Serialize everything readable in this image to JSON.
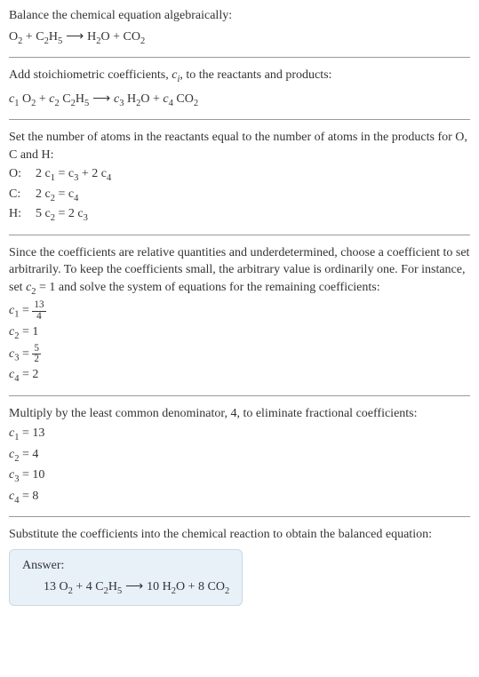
{
  "s1": {
    "l1": "Balance the chemical equation algebraically:"
  },
  "s2": {
    "l1": "Add stoichiometric coefficients, ",
    "l1b": ", to the reactants and products:"
  },
  "s3": {
    "l1": "Set the number of atoms in the reactants equal to the number of atoms in the products for O, C and H:",
    "rows": [
      {
        "el": "O:",
        "lhs": "2 c",
        "lhs_sub": "1",
        "mid": " = c",
        "mid_sub": "3",
        "pl": " + 2 c",
        "pl_sub": "4"
      },
      {
        "el": "C:",
        "lhs": "2 c",
        "lhs_sub": "2",
        "mid": " = c",
        "mid_sub": "4",
        "pl": "",
        "pl_sub": ""
      },
      {
        "el": "H:",
        "lhs": "5 c",
        "lhs_sub": "2",
        "mid": " = 2 c",
        "mid_sub": "3",
        "pl": "",
        "pl_sub": ""
      }
    ]
  },
  "s4": {
    "l1a": "Since the coefficients are relative quantities and underdetermined, choose a coefficient to set arbitrarily. To keep the coefficients small, the arbitrary value is ordinarily one. For instance, set ",
    "l1b": " = 1 and solve the system of equations for the remaining coefficients:",
    "c1": {
      "v": "c",
      "s": "1",
      "num": "13",
      "den": "4"
    },
    "c2": {
      "v": "c",
      "s": "2",
      "val": " = 1"
    },
    "c3": {
      "v": "c",
      "s": "3",
      "num": "5",
      "den": "2"
    },
    "c4": {
      "v": "c",
      "s": "4",
      "val": " = 2"
    }
  },
  "s5": {
    "l1": "Multiply by the least common denominator, 4, to eliminate fractional coefficients:",
    "rows": [
      {
        "v": "c",
        "s": "1",
        "val": " = 13"
      },
      {
        "v": "c",
        "s": "2",
        "val": " = 4"
      },
      {
        "v": "c",
        "s": "3",
        "val": " = 10"
      },
      {
        "v": "c",
        "s": "4",
        "val": " = 8"
      }
    ]
  },
  "s6": {
    "l1": "Substitute the coefficients into the chemical reaction to obtain the balanced equation:"
  },
  "answer": {
    "title": "Answer:",
    "a": "13 O",
    "a2": "2",
    "b": " + 4 C",
    "b2": "2",
    "b3": "H",
    "b4": "5",
    "arr": "  ⟶  ",
    "c": "10 H",
    "c2": "2",
    "c3": "O + 8 CO",
    "c4": "2"
  },
  "eq_initial": {
    "a": "O",
    "a2": "2",
    "b": " + C",
    "b2": "2",
    "b3": "H",
    "b4": "5",
    "arr": "  ⟶  ",
    "c": "H",
    "c2": "2",
    "c3": "O + CO",
    "c4": "2"
  },
  "eq_coeff": {
    "c1": "c",
    "c1s": "1",
    "t1": " O",
    "t1s": "2",
    "p1": " + ",
    "c2": "c",
    "c2s": "2",
    "t2": " C",
    "t2s": "2",
    "t2b": "H",
    "t2bs": "5",
    "arr": "  ⟶  ",
    "c3": "c",
    "c3s": "3",
    "t3": " H",
    "t3s": "2",
    "t3b": "O + ",
    "c4": "c",
    "c4s": "4",
    "t4": " CO",
    "t4s": "2"
  },
  "ci_var": "c",
  "ci_sub": "i",
  "c2_var": "c",
  "c2_sub": "2"
}
